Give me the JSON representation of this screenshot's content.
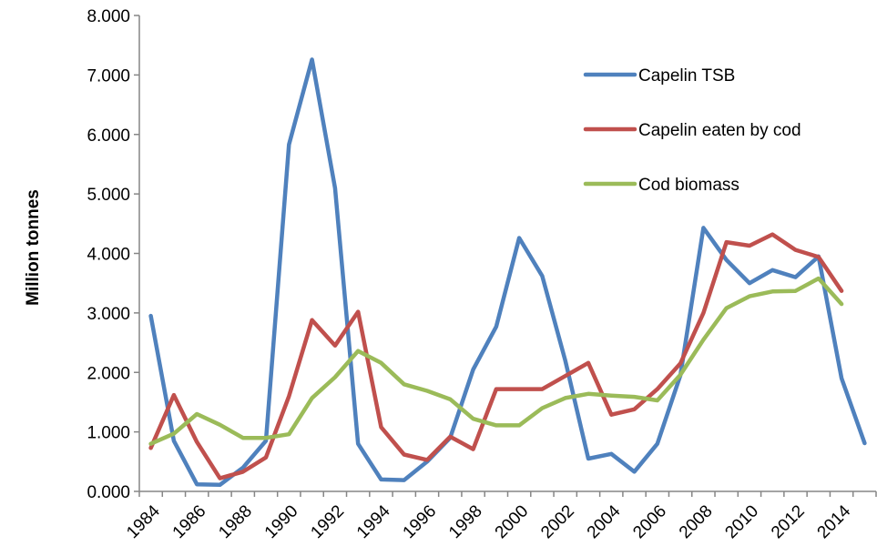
{
  "chart_data": {
    "type": "line",
    "title": "",
    "xlabel": "",
    "ylabel": "Million tonnes",
    "ylim": [
      0,
      8
    ],
    "y_ticks": [
      "0.000",
      "1.000",
      "2.000",
      "3.000",
      "4.000",
      "5.000",
      "6.000",
      "7.000",
      "8.000"
    ],
    "x_tick_labels": [
      "1984",
      "1986",
      "1988",
      "1990",
      "1992",
      "1994",
      "1996",
      "1998",
      "2000",
      "2002",
      "2004",
      "2006",
      "2008",
      "2010",
      "2012",
      "2014"
    ],
    "x": [
      1984,
      1985,
      1986,
      1987,
      1988,
      1989,
      1990,
      1991,
      1992,
      1993,
      1994,
      1995,
      1996,
      1997,
      1998,
      1999,
      2000,
      2001,
      2002,
      2003,
      2004,
      2005,
      2006,
      2007,
      2008,
      2009,
      2010,
      2011,
      2012,
      2013,
      2014,
      2015
    ],
    "grid": false,
    "legend_position": "top-right",
    "series": [
      {
        "name": "Capelin TSB",
        "color": "#4f81bd",
        "values": [
          2.95,
          0.85,
          0.12,
          0.11,
          0.4,
          0.85,
          5.83,
          7.26,
          5.1,
          0.8,
          0.2,
          0.19,
          0.5,
          0.9,
          2.05,
          2.77,
          4.26,
          3.62,
          2.2,
          0.55,
          0.63,
          0.33,
          0.8,
          1.95,
          4.43,
          3.89,
          3.5,
          3.72,
          3.6,
          3.95,
          1.9,
          0.81
        ]
      },
      {
        "name": "Capelin eaten by cod",
        "color": "#c0504d",
        "values": [
          0.73,
          1.62,
          0.83,
          0.22,
          0.33,
          0.57,
          1.6,
          2.88,
          2.45,
          3.02,
          1.08,
          0.62,
          0.53,
          0.92,
          0.71,
          1.72,
          1.72,
          1.72,
          1.94,
          2.16,
          1.29,
          1.38,
          1.72,
          2.15,
          3.0,
          4.19,
          4.13,
          4.32,
          4.06,
          3.94,
          3.37,
          null
        ]
      },
      {
        "name": "Cod biomass",
        "color": "#9bbb59",
        "values": [
          0.8,
          0.97,
          1.3,
          1.12,
          0.9,
          0.9,
          0.96,
          1.57,
          1.92,
          2.36,
          2.16,
          1.8,
          1.69,
          1.55,
          1.22,
          1.11,
          1.11,
          1.4,
          1.57,
          1.64,
          1.61,
          1.59,
          1.53,
          1.96,
          2.55,
          3.08,
          3.28,
          3.36,
          3.37,
          3.58,
          3.15,
          null
        ]
      }
    ]
  }
}
